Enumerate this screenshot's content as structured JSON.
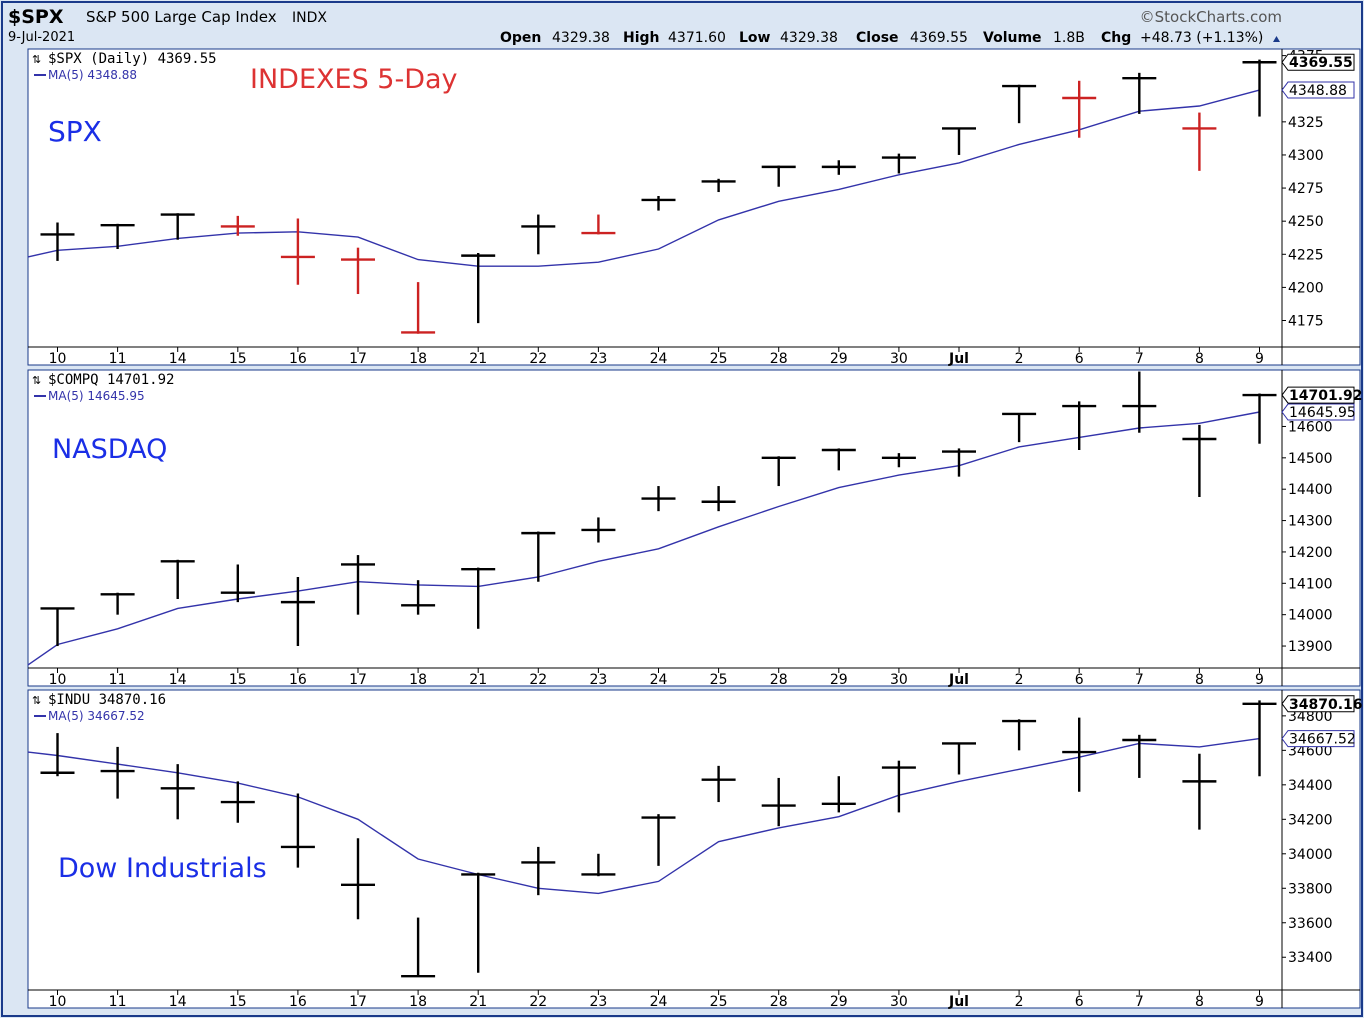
{
  "header": {
    "symbol": "$SPX",
    "name": "S&P 500 Large Cap Index",
    "exchange": "INDX",
    "date": "9-Jul-2021",
    "brand": "©StockCharts.com",
    "open_label": "Open",
    "open": "4329.38",
    "high_label": "High",
    "high": "4371.60",
    "low_label": "Low",
    "low": "4329.38",
    "close_label": "Close",
    "close": "4369.55",
    "volume_label": "Volume",
    "volume": "1.8B",
    "chg_label": "Chg",
    "chg": "+48.73 (+1.13%)"
  },
  "annotations": {
    "chart_title": "INDEXES 5-Day",
    "spx_name": "SPX",
    "nasdaq_name": "NASDAQ",
    "dow_name": "Dow Industrials"
  },
  "colors": {
    "up": "#000000",
    "down": "#cc2222",
    "ma": "#3333aa",
    "annotation_blue": "#1a2ee6",
    "annotation_red": "#dd3333",
    "frame": "#1a3a8a",
    "outer_bg": "#dbe6f3"
  },
  "x_tick_labels": [
    "10",
    "11",
    "14",
    "15",
    "16",
    "17",
    "18",
    "21",
    "22",
    "23",
    "24",
    "25",
    "28",
    "29",
    "30",
    "Jul",
    "2",
    "6",
    "7",
    "8",
    "9"
  ],
  "chart_data": [
    {
      "type": "ohlc",
      "legend_main": "$SPX (Daily) 4369.55",
      "legend_ma": "MA(5) 4348.88",
      "last_price_label": "4369.55",
      "ma_price_label": "4348.88",
      "ylim": [
        4155,
        4380
      ],
      "y_ticks": [
        4175,
        4200,
        4225,
        4250,
        4275,
        4300,
        4325,
        4350,
        4375
      ],
      "y_tick_labels": [
        "4175",
        "4200",
        "4225",
        "4250",
        "4275",
        "4300",
        "4325",
        "4350",
        "4375"
      ],
      "bars": [
        {
          "high": 4249,
          "low": 4220,
          "close": 4240,
          "down": false
        },
        {
          "high": 4248,
          "low": 4229,
          "close": 4247,
          "down": false
        },
        {
          "high": 4256,
          "low": 4236,
          "close": 4255,
          "down": false
        },
        {
          "high": 4254,
          "low": 4239,
          "close": 4246,
          "down": true
        },
        {
          "high": 4252,
          "low": 4202,
          "close": 4223,
          "down": true
        },
        {
          "high": 4230,
          "low": 4195,
          "close": 4221,
          "down": true
        },
        {
          "high": 4204,
          "low": 4165,
          "close": 4166,
          "down": true
        },
        {
          "high": 4226,
          "low": 4173,
          "close": 4224,
          "down": false
        },
        {
          "high": 4255,
          "low": 4225,
          "close": 4246,
          "down": false
        },
        {
          "high": 4255,
          "low": 4240,
          "close": 4241,
          "down": true
        },
        {
          "high": 4269,
          "low": 4258,
          "close": 4266,
          "down": false
        },
        {
          "high": 4282,
          "low": 4272,
          "close": 4280,
          "down": false
        },
        {
          "high": 4292,
          "low": 4276,
          "close": 4291,
          "down": false
        },
        {
          "high": 4296,
          "low": 4285,
          "close": 4291,
          "down": false
        },
        {
          "high": 4301,
          "low": 4286,
          "close": 4298,
          "down": false
        },
        {
          "high": 4320,
          "low": 4300,
          "close": 4320,
          "down": false
        },
        {
          "high": 4353,
          "low": 4324,
          "close": 4352,
          "down": false
        },
        {
          "high": 4356,
          "low": 4313,
          "close": 4343,
          "down": true
        },
        {
          "high": 4362,
          "low": 4331,
          "close": 4358,
          "down": false
        },
        {
          "high": 4332,
          "low": 4288,
          "close": 4320,
          "down": true
        },
        {
          "high": 4372,
          "low": 4329,
          "close": 4370,
          "down": false
        }
      ],
      "ma": [
        4223,
        4228,
        4231,
        4237,
        4241,
        4242,
        4238,
        4221,
        4216,
        4216,
        4219,
        4229,
        4251,
        4265,
        4274,
        4285,
        4294,
        4308,
        4319,
        4333,
        4337,
        4349
      ]
    },
    {
      "type": "ohlc",
      "legend_main": "$COMPQ 14701.92",
      "legend_ma": "MA(5) 14645.95",
      "last_price_label": "14701.92",
      "ma_price_label": "14645.95",
      "ylim": [
        13830,
        14780
      ],
      "y_ticks": [
        13900,
        14000,
        14100,
        14200,
        14300,
        14400,
        14500,
        14600,
        14700
      ],
      "y_tick_labels": [
        "13900",
        "14000",
        "14100",
        "14200",
        "14300",
        "14400",
        "14500",
        "14600",
        "14700"
      ],
      "bars": [
        {
          "high": 14020,
          "low": 13900,
          "close": 14020,
          "down": false
        },
        {
          "high": 14070,
          "low": 14000,
          "close": 14065,
          "down": false
        },
        {
          "high": 14175,
          "low": 14050,
          "close": 14170,
          "down": false
        },
        {
          "high": 14160,
          "low": 14040,
          "close": 14070,
          "down": false
        },
        {
          "high": 14120,
          "low": 13900,
          "close": 14040,
          "down": false
        },
        {
          "high": 14190,
          "low": 14000,
          "close": 14160,
          "down": false
        },
        {
          "high": 14110,
          "low": 14000,
          "close": 14030,
          "down": false
        },
        {
          "high": 14150,
          "low": 13955,
          "close": 14145,
          "down": false
        },
        {
          "high": 14265,
          "low": 14105,
          "close": 14260,
          "down": false
        },
        {
          "high": 14310,
          "low": 14230,
          "close": 14270,
          "down": false
        },
        {
          "high": 14410,
          "low": 14330,
          "close": 14370,
          "down": false
        },
        {
          "high": 14410,
          "low": 14330,
          "close": 14360,
          "down": false
        },
        {
          "high": 14505,
          "low": 14410,
          "close": 14500,
          "down": false
        },
        {
          "high": 14530,
          "low": 14460,
          "close": 14525,
          "down": false
        },
        {
          "high": 14515,
          "low": 14470,
          "close": 14500,
          "down": false
        },
        {
          "high": 14530,
          "low": 14440,
          "close": 14520,
          "down": false
        },
        {
          "high": 14640,
          "low": 14550,
          "close": 14640,
          "down": false
        },
        {
          "high": 14680,
          "low": 14525,
          "close": 14665,
          "down": false
        },
        {
          "high": 14775,
          "low": 14580,
          "close": 14665,
          "down": false
        },
        {
          "high": 14605,
          "low": 14375,
          "close": 14560,
          "down": false
        },
        {
          "high": 14705,
          "low": 14545,
          "close": 14700,
          "down": false
        }
      ],
      "ma": [
        13840,
        13905,
        13955,
        14020,
        14050,
        14075,
        14105,
        14095,
        14090,
        14120,
        14170,
        14210,
        14280,
        14345,
        14405,
        14445,
        14475,
        14535,
        14565,
        14595,
        14610,
        14646
      ]
    },
    {
      "type": "ohlc",
      "legend_main": "$INDU 34870.16",
      "legend_ma": "MA(5) 34667.52",
      "last_price_label": "34870.16",
      "ma_price_label": "34667.52",
      "ylim": [
        33210,
        34950
      ],
      "y_ticks": [
        33400,
        33600,
        33800,
        34000,
        34200,
        34400,
        34600,
        34800
      ],
      "y_tick_labels": [
        "33400",
        "33600",
        "33800",
        "34000",
        "34200",
        "34400",
        "34600",
        "34800"
      ],
      "bars": [
        {
          "high": 34700,
          "low": 34450,
          "close": 34470,
          "down": false
        },
        {
          "high": 34620,
          "low": 34320,
          "close": 34480,
          "down": false
        },
        {
          "high": 34520,
          "low": 34200,
          "close": 34380,
          "down": false
        },
        {
          "high": 34420,
          "low": 34180,
          "close": 34300,
          "down": false
        },
        {
          "high": 34350,
          "low": 33920,
          "close": 34040,
          "down": false
        },
        {
          "high": 34090,
          "low": 33620,
          "close": 33820,
          "down": false
        },
        {
          "high": 33630,
          "low": 33290,
          "close": 33290,
          "down": false
        },
        {
          "high": 33890,
          "low": 33310,
          "close": 33880,
          "down": false
        },
        {
          "high": 34040,
          "low": 33760,
          "close": 33950,
          "down": false
        },
        {
          "high": 34000,
          "low": 33870,
          "close": 33880,
          "down": false
        },
        {
          "high": 34230,
          "low": 33930,
          "close": 34210,
          "down": false
        },
        {
          "high": 34510,
          "low": 34300,
          "close": 34430,
          "down": false
        },
        {
          "high": 34440,
          "low": 34160,
          "close": 34280,
          "down": false
        },
        {
          "high": 34450,
          "low": 34240,
          "close": 34290,
          "down": false
        },
        {
          "high": 34540,
          "low": 34240,
          "close": 34500,
          "down": false
        },
        {
          "high": 34640,
          "low": 34460,
          "close": 34640,
          "down": false
        },
        {
          "high": 34780,
          "low": 34600,
          "close": 34770,
          "down": false
        },
        {
          "high": 34790,
          "low": 34360,
          "close": 34590,
          "down": false
        },
        {
          "high": 34690,
          "low": 34440,
          "close": 34660,
          "down": false
        },
        {
          "high": 34580,
          "low": 34140,
          "close": 34420,
          "down": false
        },
        {
          "high": 34890,
          "low": 34450,
          "close": 34870,
          "down": false
        }
      ],
      "ma": [
        34590,
        34570,
        34520,
        34470,
        34410,
        34330,
        34200,
        33970,
        33880,
        33800,
        33770,
        33840,
        34070,
        34150,
        34215,
        34340,
        34420,
        34490,
        34560,
        34640,
        34620,
        34668
      ]
    }
  ]
}
